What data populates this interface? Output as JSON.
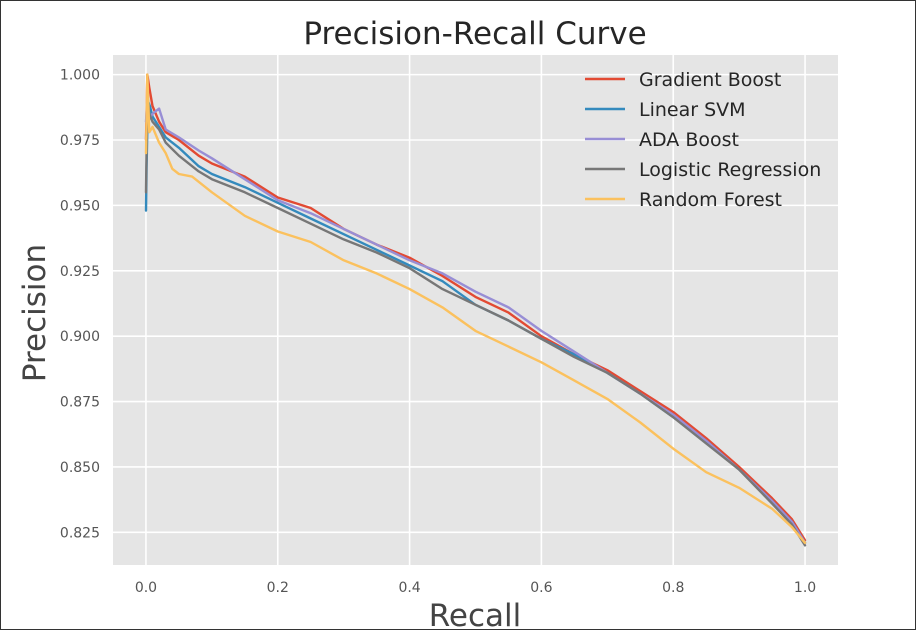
{
  "chart_data": {
    "type": "line",
    "title": "Precision-Recall Curve",
    "xlabel": "Recall",
    "ylabel": "Precision",
    "xlim": [
      -0.05,
      1.05
    ],
    "ylim": [
      0.8125,
      1.0075
    ],
    "xticks": [
      "0.0",
      "0.2",
      "0.4",
      "0.6",
      "0.8",
      "1.0"
    ],
    "yticks": [
      "1.000",
      "0.975",
      "0.950",
      "0.925",
      "0.900",
      "0.875",
      "0.850",
      "0.825"
    ],
    "grid": true,
    "legend_position": "top-right",
    "series": [
      {
        "name": "Gradient Boost",
        "color": "#E24A33",
        "x": [
          0,
          0.002,
          0.005,
          0.01,
          0.02,
          0.03,
          0.05,
          0.08,
          0.1,
          0.15,
          0.2,
          0.25,
          0.3,
          0.35,
          0.4,
          0.45,
          0.5,
          0.55,
          0.6,
          0.65,
          0.7,
          0.75,
          0.8,
          0.85,
          0.9,
          0.95,
          0.98,
          1.0
        ],
        "y": [
          0.975,
          1.0,
          0.995,
          0.988,
          0.982,
          0.978,
          0.975,
          0.969,
          0.966,
          0.961,
          0.953,
          0.949,
          0.941,
          0.935,
          0.93,
          0.923,
          0.915,
          0.909,
          0.9,
          0.893,
          0.887,
          0.879,
          0.871,
          0.861,
          0.85,
          0.838,
          0.83,
          0.822
        ]
      },
      {
        "name": "Linear SVM",
        "color": "#348ABD",
        "x": [
          0,
          0.001,
          0.003,
          0.006,
          0.01,
          0.02,
          0.03,
          0.05,
          0.08,
          0.1,
          0.15,
          0.2,
          0.25,
          0.3,
          0.35,
          0.4,
          0.45,
          0.5,
          0.55,
          0.6,
          0.65,
          0.7,
          0.75,
          0.8,
          0.85,
          0.9,
          0.95,
          0.98,
          1.0
        ],
        "y": [
          0.948,
          0.965,
          0.99,
          0.988,
          0.984,
          0.98,
          0.976,
          0.972,
          0.965,
          0.962,
          0.957,
          0.951,
          0.945,
          0.939,
          0.933,
          0.927,
          0.921,
          0.912,
          0.906,
          0.899,
          0.893,
          0.886,
          0.878,
          0.869,
          0.86,
          0.849,
          0.837,
          0.829,
          0.821
        ]
      },
      {
        "name": "ADA Boost",
        "color": "#988ED5",
        "x": [
          0,
          0.002,
          0.005,
          0.01,
          0.02,
          0.03,
          0.05,
          0.08,
          0.1,
          0.15,
          0.2,
          0.25,
          0.3,
          0.35,
          0.4,
          0.45,
          0.5,
          0.55,
          0.6,
          0.65,
          0.7,
          0.75,
          0.8,
          0.85,
          0.9,
          0.95,
          0.98,
          1.0
        ],
        "y": [
          0.982,
          0.99,
          0.983,
          0.985,
          0.987,
          0.979,
          0.976,
          0.971,
          0.968,
          0.96,
          0.952,
          0.947,
          0.941,
          0.935,
          0.929,
          0.924,
          0.917,
          0.911,
          0.902,
          0.894,
          0.886,
          0.878,
          0.87,
          0.86,
          0.849,
          0.837,
          0.829,
          0.821
        ]
      },
      {
        "name": "Logistic Regression",
        "color": "#777777",
        "x": [
          0,
          0.002,
          0.005,
          0.01,
          0.02,
          0.03,
          0.05,
          0.08,
          0.1,
          0.15,
          0.2,
          0.25,
          0.3,
          0.35,
          0.4,
          0.45,
          0.5,
          0.55,
          0.6,
          0.65,
          0.7,
          0.75,
          0.8,
          0.85,
          0.9,
          0.95,
          0.98,
          1.0
        ],
        "y": [
          0.955,
          0.993,
          0.985,
          0.982,
          0.979,
          0.974,
          0.969,
          0.963,
          0.96,
          0.955,
          0.949,
          0.943,
          0.937,
          0.932,
          0.926,
          0.918,
          0.912,
          0.906,
          0.899,
          0.892,
          0.886,
          0.878,
          0.869,
          0.859,
          0.849,
          0.836,
          0.828,
          0.82
        ]
      },
      {
        "name": "Random Forest",
        "color": "#FBC15E",
        "x": [
          0,
          0.002,
          0.005,
          0.01,
          0.02,
          0.03,
          0.04,
          0.05,
          0.07,
          0.1,
          0.15,
          0.2,
          0.25,
          0.3,
          0.35,
          0.4,
          0.45,
          0.5,
          0.55,
          0.6,
          0.65,
          0.7,
          0.75,
          0.8,
          0.85,
          0.9,
          0.95,
          0.98,
          1.0
        ],
        "y": [
          0.97,
          1.0,
          0.978,
          0.98,
          0.974,
          0.97,
          0.964,
          0.962,
          0.961,
          0.955,
          0.946,
          0.94,
          0.936,
          0.929,
          0.924,
          0.918,
          0.911,
          0.902,
          0.896,
          0.89,
          0.883,
          0.876,
          0.867,
          0.857,
          0.848,
          0.842,
          0.834,
          0.827,
          0.821
        ]
      }
    ]
  }
}
